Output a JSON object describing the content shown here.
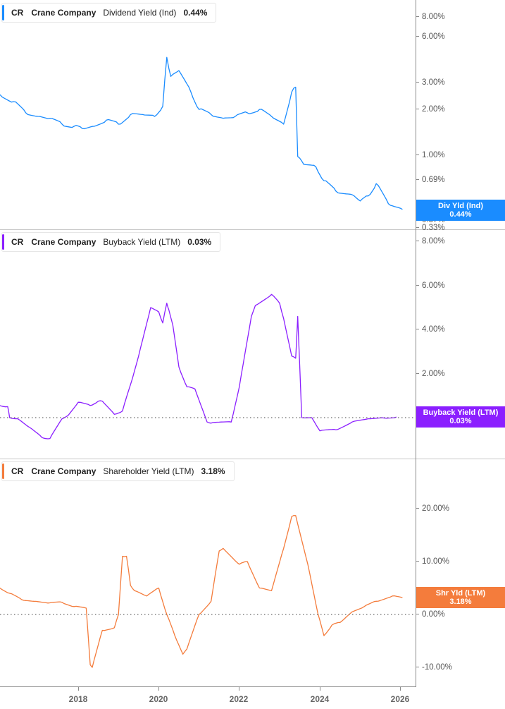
{
  "chart_data": [
    {
      "type": "line",
      "title": "CR Crane Company Dividend Yield (Ind)",
      "ticker": "CR",
      "company": "Crane Company",
      "metric": "Dividend Yield (Ind)",
      "current_value": "0.44%",
      "yscale": "log",
      "ylabel": "",
      "y_ticks": [
        "8.00%",
        "6.00%",
        "3.00%",
        "2.00%",
        "1.00%",
        "0.69%",
        "0.37%",
        "0.33%"
      ],
      "x_ticks": [
        "2018",
        "2020",
        "2022",
        "2024",
        "2026"
      ],
      "color": "#1a8cff",
      "series": [
        {
          "name": "Div Yld (Ind)",
          "x": [
            2016.06,
            2016.4,
            2016.7,
            2017.0,
            2017.3,
            2017.6,
            2017.9,
            2018.1,
            2018.4,
            2018.7,
            2019.0,
            2019.3,
            2019.6,
            2019.9,
            2020.1,
            2020.2,
            2020.3,
            2020.5,
            2020.8,
            2021.0,
            2021.3,
            2021.6,
            2021.9,
            2022.2,
            2022.5,
            2022.8,
            2023.1,
            2023.3,
            2023.4,
            2023.45,
            2023.6,
            2023.9,
            2024.1,
            2024.4,
            2024.8,
            2025.0,
            2025.2,
            2025.4,
            2025.7,
            2026.05
          ],
          "values": [
            2.5,
            2.25,
            1.9,
            1.8,
            1.75,
            1.6,
            1.55,
            1.5,
            1.55,
            1.7,
            1.6,
            1.85,
            1.85,
            1.8,
            2.1,
            4.4,
            3.3,
            3.6,
            2.6,
            2.0,
            1.85,
            1.75,
            1.8,
            1.9,
            2.0,
            1.8,
            1.6,
            2.6,
            2.8,
            0.98,
            0.87,
            0.84,
            0.68,
            0.58,
            0.55,
            0.5,
            0.54,
            0.65,
            0.48,
            0.44
          ]
        }
      ]
    },
    {
      "type": "line",
      "title": "CR Crane Company Buyback Yield (LTM)",
      "ticker": "CR",
      "company": "Crane Company",
      "metric": "Buyback Yield (LTM)",
      "current_value": "0.03%",
      "ylim": [
        -1.0,
        8.5
      ],
      "y_ticks": [
        "8.00%",
        "6.00%",
        "4.00%",
        "2.00%",
        "0.00%"
      ],
      "x_ticks": [
        "2018",
        "2020",
        "2022",
        "2024",
        "2026"
      ],
      "color": "#8b1fff",
      "series": [
        {
          "name": "Buyback Yield (LTM)",
          "x": [
            2016.06,
            2016.25,
            2016.3,
            2016.5,
            2016.8,
            2017.1,
            2017.3,
            2017.6,
            2017.75,
            2018.0,
            2018.3,
            2018.5,
            2018.6,
            2018.9,
            2019.1,
            2019.3,
            2019.5,
            2019.8,
            2020.0,
            2020.1,
            2020.2,
            2020.25,
            2020.35,
            2020.5,
            2020.7,
            2020.9,
            2021.2,
            2021.3,
            2021.8,
            2022.0,
            2022.3,
            2022.4,
            2022.8,
            2023.0,
            2023.1,
            2023.3,
            2023.4,
            2023.45,
            2023.55,
            2023.8,
            2024.0,
            2024.4,
            2024.8,
            2025.2,
            2025.6,
            2025.9
          ],
          "values": [
            0.55,
            0.5,
            0.0,
            -0.05,
            -0.45,
            -0.9,
            -0.95,
            -0.05,
            0.1,
            0.7,
            0.55,
            0.75,
            0.75,
            0.15,
            0.3,
            1.5,
            2.8,
            5.0,
            4.8,
            4.3,
            5.2,
            4.9,
            4.2,
            2.3,
            1.4,
            1.3,
            -0.2,
            -0.25,
            -0.2,
            1.4,
            4.6,
            5.1,
            5.6,
            5.2,
            4.5,
            2.8,
            2.7,
            4.6,
            0.0,
            0.0,
            -0.6,
            -0.55,
            -0.2,
            -0.05,
            -0.02,
            0.03
          ]
        }
      ]
    },
    {
      "type": "line",
      "title": "CR Crane Company Shareholder Yield (LTM)",
      "ticker": "CR",
      "company": "Crane Company",
      "metric": "Shareholder Yield (LTM)",
      "current_value": "3.18%",
      "ylim": [
        -12,
        30
      ],
      "y_ticks": [
        "20.00%",
        "10.00%",
        "0.00%",
        "-10.00%"
      ],
      "x_ticks": [
        "2018",
        "2020",
        "2022",
        "2024",
        "2026"
      ],
      "color": "#f47c3c",
      "series": [
        {
          "name": "Shr Yld (LTM)",
          "x": [
            2016.06,
            2016.3,
            2016.6,
            2016.9,
            2017.3,
            2017.6,
            2017.9,
            2018.2,
            2018.3,
            2018.35,
            2018.6,
            2018.9,
            2019.0,
            2019.1,
            2019.2,
            2019.3,
            2019.4,
            2019.7,
            2020.0,
            2020.2,
            2020.4,
            2020.6,
            2020.7,
            2021.0,
            2021.3,
            2021.5,
            2021.6,
            2022.0,
            2022.2,
            2022.5,
            2022.8,
            2023.1,
            2023.3,
            2023.4,
            2023.7,
            2023.95,
            2024.1,
            2024.3,
            2024.5,
            2024.8,
            2025.1,
            2025.4,
            2025.8,
            2026.05
          ],
          "values": [
            5.0,
            4.0,
            2.8,
            2.5,
            2.2,
            2.3,
            1.5,
            1.2,
            -9.5,
            -10,
            -3.0,
            -2.5,
            0.0,
            11.0,
            11.0,
            5.5,
            4.5,
            3.5,
            5.0,
            0.0,
            -4.0,
            -7.5,
            -6.5,
            0.0,
            2.5,
            12.0,
            12.5,
            9.5,
            10.0,
            5.0,
            4.5,
            12.5,
            18.5,
            18.7,
            9.5,
            0.2,
            -4.0,
            -2.0,
            -1.5,
            0.5,
            1.5,
            2.5,
            3.5,
            3.18
          ]
        }
      ]
    }
  ],
  "panels": [
    {
      "legend": {
        "ticker": "CR",
        "company": "Crane Company",
        "metric": "Dividend Yield (Ind)",
        "value": "0.44%"
      },
      "badge": {
        "label": "Div Yld (Ind)",
        "value": "0.44%",
        "color": "#1a8cff"
      },
      "ticks": [
        "8.00%",
        "6.00%",
        "3.00%",
        "2.00%",
        "1.00%",
        "0.69%",
        "0.37%",
        "0.33%"
      ]
    },
    {
      "legend": {
        "ticker": "CR",
        "company": "Crane Company",
        "metric": "Buyback Yield (LTM)",
        "value": "0.03%"
      },
      "badge": {
        "label": "Buyback Yield (LTM)",
        "value": "0.03%",
        "color": "#8b1fff"
      },
      "ticks": [
        "8.00%",
        "6.00%",
        "4.00%",
        "2.00%",
        "0.00%"
      ]
    },
    {
      "legend": {
        "ticker": "CR",
        "company": "Crane Company",
        "metric": "Shareholder Yield (LTM)",
        "value": "3.18%"
      },
      "badge": {
        "label": "Shr Yld (LTM)",
        "value": "3.18%",
        "color": "#f47c3c"
      },
      "ticks": [
        "20.00%",
        "10.00%",
        "0.00%",
        "-10.00%"
      ]
    }
  ],
  "x_axis": {
    "ticks": [
      "2018",
      "2020",
      "2022",
      "2024",
      "2026"
    ]
  }
}
